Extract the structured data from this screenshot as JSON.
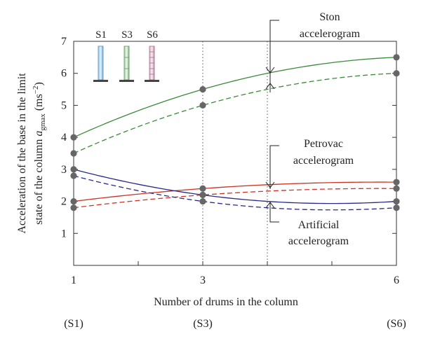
{
  "chart_data": {
    "type": "line",
    "xlabel": "Number of drums in the column",
    "ylabel_line1": "Acceleration of the base in the limit",
    "ylabel_line2_prefix": "state of the column ",
    "ylabel_symbol": "a",
    "ylabel_subscript": "gmax",
    "ylabel_unit_open": " (ms",
    "ylabel_unit_exp": "−2",
    "ylabel_unit_close": ")",
    "xlim": [
      1,
      6
    ],
    "ylim": [
      0,
      7
    ],
    "x_ticks": [
      1,
      3,
      6
    ],
    "x_minor_ticks": [
      2,
      4,
      5
    ],
    "y_ticks": [
      1,
      2,
      3,
      4,
      5,
      6,
      7
    ],
    "x_tick_labels": [
      "1",
      "3",
      "6"
    ],
    "y_tick_labels": [
      "1",
      "2",
      "3",
      "4",
      "5",
      "6",
      "7"
    ],
    "x_secondary_labels": [
      "(S1)",
      "(S3)",
      "(S6)"
    ],
    "grid_x": [
      3,
      4
    ],
    "column_labels": [
      "S1",
      "S3",
      "S6"
    ],
    "annotations": {
      "ston_line1": "Ston",
      "ston_line2": "accelerogram",
      "petrovac_line1": "Petrovac",
      "petrovac_line2": "accelerogram",
      "artificial_line1": "Artificial",
      "artificial_line2": "accelerogram"
    },
    "series": [
      {
        "color": "#3a8a3a",
        "dash": false,
        "x": [
          1,
          3,
          6
        ],
        "y": [
          4.0,
          5.5,
          6.5
        ]
      },
      {
        "color": "#3a8a3a",
        "dash": true,
        "x": [
          1,
          3,
          6
        ],
        "y": [
          3.5,
          5.0,
          6.0
        ]
      },
      {
        "color": "#cc3322",
        "dash": false,
        "x": [
          1,
          3,
          6
        ],
        "y": [
          2.0,
          2.4,
          2.6
        ]
      },
      {
        "color": "#cc3322",
        "dash": true,
        "x": [
          1,
          3,
          6
        ],
        "y": [
          1.8,
          2.2,
          2.4
        ]
      },
      {
        "color": "#2a2a8a",
        "dash": false,
        "x": [
          1,
          3,
          6
        ],
        "y": [
          3.0,
          2.2,
          2.0
        ]
      },
      {
        "color": "#2a2a8a",
        "dash": true,
        "x": [
          1,
          3,
          6
        ],
        "y": [
          2.8,
          2.0,
          1.8
        ]
      }
    ],
    "marker_color": "#666666"
  }
}
